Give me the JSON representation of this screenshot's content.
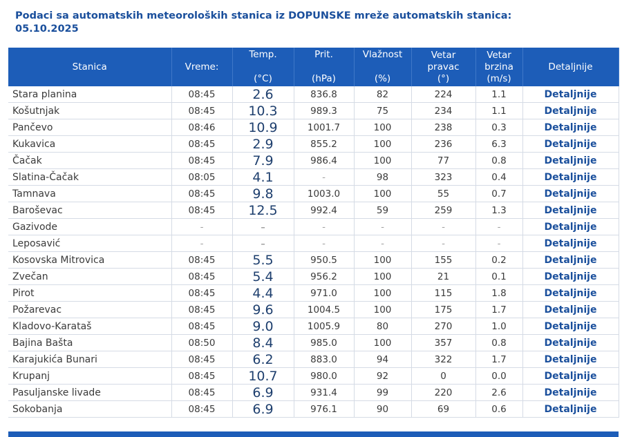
{
  "title_line1": "Podaci sa automatskih meteoroloških stanica iz DOPUNSKE mreže automatskih stanica:",
  "title_line2": "05.10.2025",
  "headers": {
    "station": "Stanica",
    "time": "Vreme:",
    "temp_top": "Temp.",
    "temp_unit": "(°C)",
    "pressure_top": "Prit.",
    "pressure_unit": "(hPa)",
    "humidity_top": "Vlažnost",
    "humidity_unit": "(%)",
    "wind_dir_top": "Vetar",
    "wind_dir_mid": "pravac",
    "wind_dir_unit": "(°)",
    "wind_speed_top": "Vetar",
    "wind_speed_mid": "brzina",
    "wind_speed_unit": "(m/s)",
    "details": "Detaljnije"
  },
  "rows": [
    {
      "station": "Stara planina",
      "time": "08:45",
      "temp": "2.6",
      "pressure": "836.8",
      "humidity": "82",
      "wind_dir": "224",
      "wind_speed": "1.1",
      "details": "Detaljnije"
    },
    {
      "station": "Košutnjak",
      "time": "08:45",
      "temp": "10.3",
      "pressure": "989.3",
      "humidity": "75",
      "wind_dir": "234",
      "wind_speed": "1.1",
      "details": "Detaljnije"
    },
    {
      "station": "Pančevo",
      "time": "08:46",
      "temp": "10.9",
      "pressure": "1001.7",
      "humidity": "100",
      "wind_dir": "238",
      "wind_speed": "0.3",
      "details": "Detaljnije"
    },
    {
      "station": "Kukavica",
      "time": "08:45",
      "temp": "2.9",
      "pressure": "855.2",
      "humidity": "100",
      "wind_dir": "236",
      "wind_speed": "6.3",
      "details": "Detaljnije"
    },
    {
      "station": "Čačak",
      "time": "08:45",
      "temp": "7.9",
      "pressure": "986.4",
      "humidity": "100",
      "wind_dir": "77",
      "wind_speed": "0.8",
      "details": "Detaljnije"
    },
    {
      "station": "Slatina-Čačak",
      "time": "08:05",
      "temp": "4.1",
      "pressure": "-",
      "humidity": "98",
      "wind_dir": "323",
      "wind_speed": "0.4",
      "details": "Detaljnije"
    },
    {
      "station": "Tamnava",
      "time": "08:45",
      "temp": "9.8",
      "pressure": "1003.0",
      "humidity": "100",
      "wind_dir": "55",
      "wind_speed": "0.7",
      "details": "Detaljnije"
    },
    {
      "station": "Baroševac",
      "time": "08:45",
      "temp": "12.5",
      "pressure": "992.4",
      "humidity": "59",
      "wind_dir": "259",
      "wind_speed": "1.3",
      "details": "Detaljnije"
    },
    {
      "station": "Gazivode",
      "time": "-",
      "temp": "-",
      "pressure": "-",
      "humidity": "-",
      "wind_dir": "-",
      "wind_speed": "-",
      "details": "Detaljnije"
    },
    {
      "station": "Leposavić",
      "time": "-",
      "temp": "-",
      "pressure": "-",
      "humidity": "-",
      "wind_dir": "-",
      "wind_speed": "-",
      "details": "Detaljnije"
    },
    {
      "station": "Kosovska Mitrovica",
      "time": "08:45",
      "temp": "5.5",
      "pressure": "950.5",
      "humidity": "100",
      "wind_dir": "155",
      "wind_speed": "0.2",
      "details": "Detaljnije"
    },
    {
      "station": "Zvečan",
      "time": "08:45",
      "temp": "5.4",
      "pressure": "956.2",
      "humidity": "100",
      "wind_dir": "21",
      "wind_speed": "0.1",
      "details": "Detaljnije"
    },
    {
      "station": "Pirot",
      "time": "08:45",
      "temp": "4.4",
      "pressure": "971.0",
      "humidity": "100",
      "wind_dir": "115",
      "wind_speed": "1.8",
      "details": "Detaljnije"
    },
    {
      "station": "Požarevac",
      "time": "08:45",
      "temp": "9.6",
      "pressure": "1004.5",
      "humidity": "100",
      "wind_dir": "175",
      "wind_speed": "1.7",
      "details": "Detaljnije"
    },
    {
      "station": "Kladovo-Karataš",
      "time": "08:45",
      "temp": "9.0",
      "pressure": "1005.9",
      "humidity": "80",
      "wind_dir": "270",
      "wind_speed": "1.0",
      "details": "Detaljnije"
    },
    {
      "station": "Bajina Bašta",
      "time": "08:50",
      "temp": "8.4",
      "pressure": "985.0",
      "humidity": "100",
      "wind_dir": "357",
      "wind_speed": "0.8",
      "details": "Detaljnije"
    },
    {
      "station": "Karajukića Bunari",
      "time": "08:45",
      "temp": "6.2",
      "pressure": "883.0",
      "humidity": "94",
      "wind_dir": "322",
      "wind_speed": "1.7",
      "details": "Detaljnije"
    },
    {
      "station": "Krupanj",
      "time": "08:45",
      "temp": "10.7",
      "pressure": "980.0",
      "humidity": "92",
      "wind_dir": "0",
      "wind_speed": "0.0",
      "details": "Detaljnije"
    },
    {
      "station": "Pasuljanske livade",
      "time": "08:45",
      "temp": "6.9",
      "pressure": "931.4",
      "humidity": "99",
      "wind_dir": "220",
      "wind_speed": "2.6",
      "details": "Detaljnije"
    },
    {
      "station": "Sokobanja",
      "time": "08:45",
      "temp": "6.9",
      "pressure": "976.1",
      "humidity": "90",
      "wind_dir": "69",
      "wind_speed": "0.6",
      "details": "Detaljnije"
    }
  ]
}
